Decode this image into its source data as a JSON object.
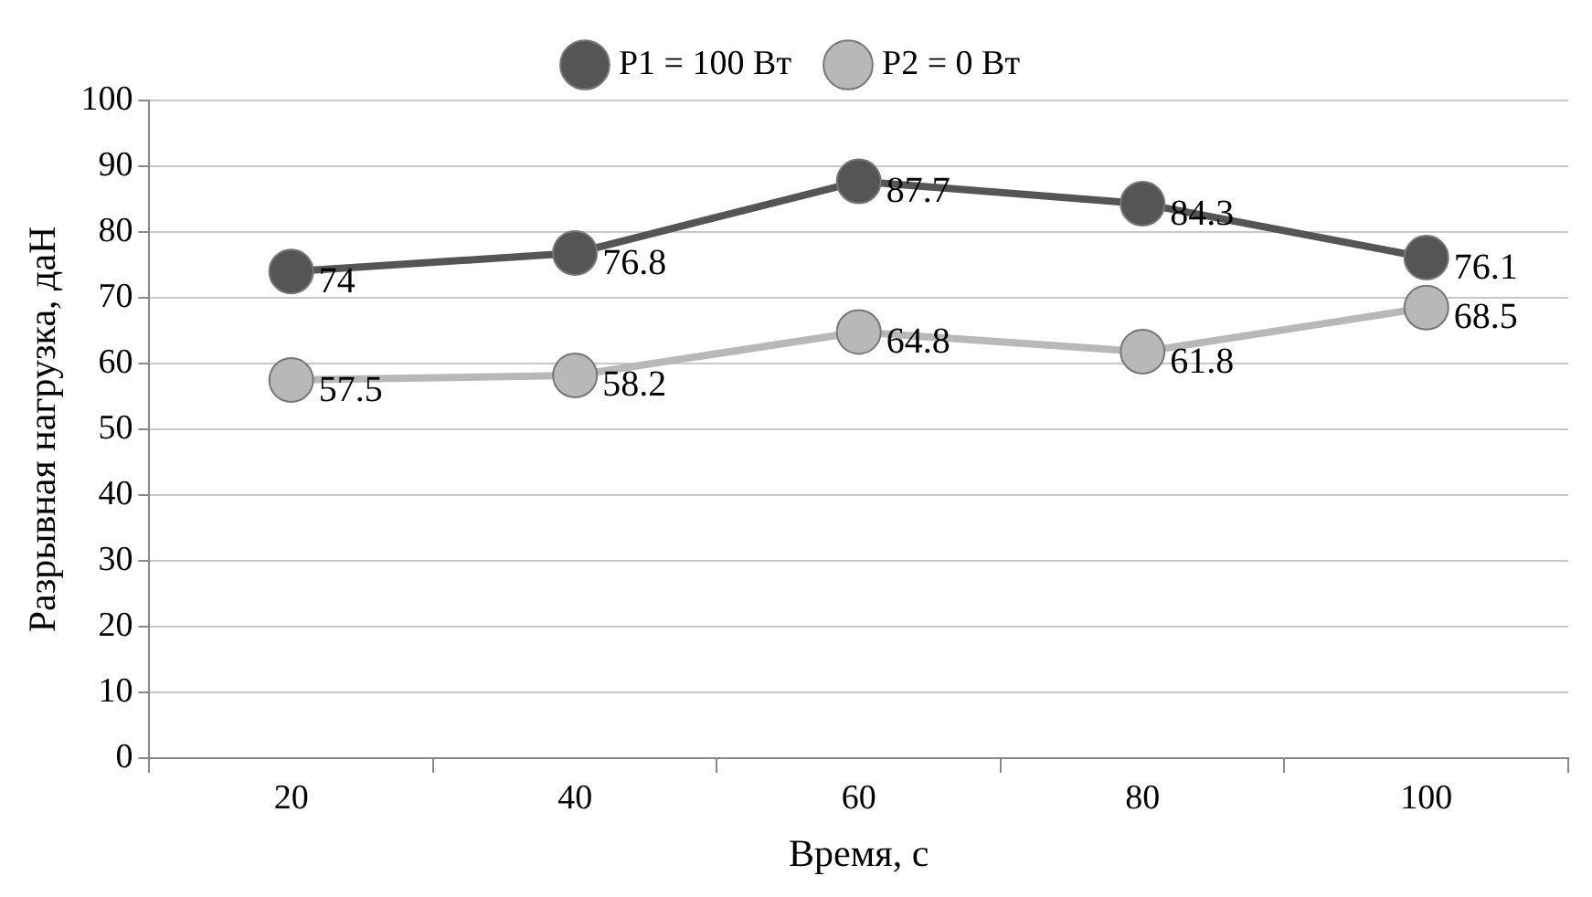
{
  "chart_data": {
    "type": "line",
    "xlabel": "Время, с",
    "ylabel": "Разрывная нагрузка, даН",
    "categories": [
      "20",
      "40",
      "60",
      "80",
      "100"
    ],
    "series": [
      {
        "name": "P1 = 100 Вт",
        "color": "#555555",
        "values": [
          74,
          76.8,
          87.7,
          84.3,
          76.1
        ]
      },
      {
        "name": "P2 = 0 Вт",
        "color": "#b8b8b8",
        "values": [
          57.5,
          58.2,
          64.8,
          61.8,
          68.5
        ]
      }
    ],
    "ylim": [
      0,
      100
    ],
    "yticks": [
      0,
      10,
      20,
      30,
      40,
      50,
      60,
      70,
      80,
      90,
      100
    ],
    "grid": "y",
    "legend": "top",
    "marker": "circle",
    "line_style": "solid",
    "data_labels": true
  }
}
